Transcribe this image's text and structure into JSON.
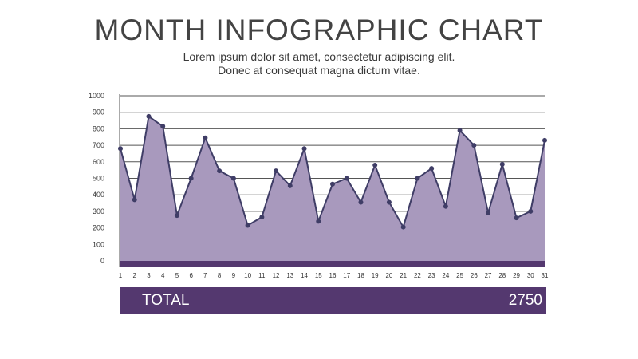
{
  "header": {
    "title": "MONTH INFOGRAPHIC CHART",
    "subtitle_line1": "Lorem ipsum dolor sit amet, consectetur adipiscing elit.",
    "subtitle_line2": "Donec at consequat magna dictum vitae."
  },
  "colors": {
    "line": "#3f3d66",
    "area": "#a899bd",
    "base_band": "#54386f",
    "grid": "#555555",
    "total_bar": "#54386f"
  },
  "chart_data": {
    "type": "area",
    "title": "MONTH INFOGRAPHIC CHART",
    "x": [
      "1",
      "2",
      "3",
      "4",
      "5",
      "6",
      "7",
      "8",
      "9",
      "10",
      "11",
      "12",
      "13",
      "14",
      "15",
      "16",
      "17",
      "18",
      "19",
      "20",
      "21",
      "22",
      "23",
      "24",
      "25",
      "26",
      "27",
      "28",
      "29",
      "30",
      "31"
    ],
    "values": [
      680,
      370,
      875,
      815,
      275,
      500,
      745,
      545,
      500,
      215,
      265,
      545,
      455,
      680,
      240,
      465,
      500,
      355,
      580,
      355,
      205,
      500,
      560,
      330,
      790,
      700,
      290,
      585,
      260,
      300,
      730
    ],
    "yticks": [
      "1000",
      "900",
      "800",
      "700",
      "600",
      "500",
      "400",
      "300",
      "200",
      "100",
      "0"
    ],
    "ylim": [
      0,
      1000
    ],
    "grid": true,
    "legend": "none"
  },
  "total": {
    "label": "TOTAL",
    "value": "2750"
  }
}
